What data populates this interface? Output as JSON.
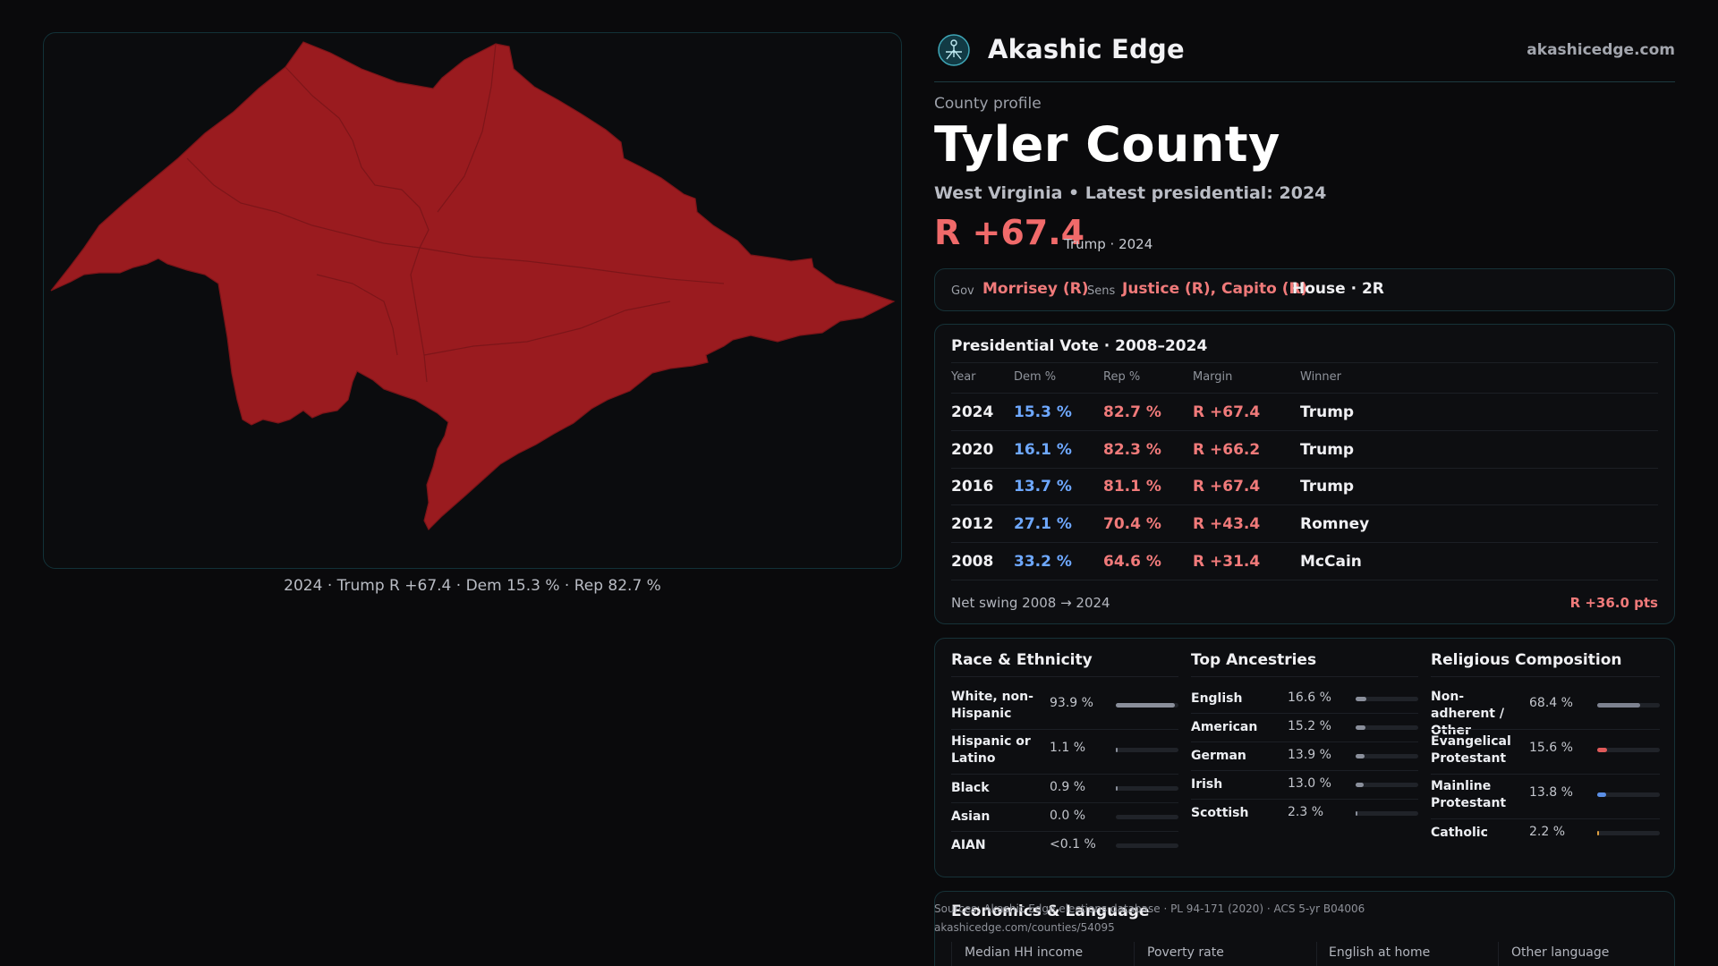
{
  "brand": {
    "name": "Akashic Edge",
    "url": "akashicedge.com",
    "logo_icon": "akashic-edge-logo-icon"
  },
  "profile": {
    "kicker": "County profile",
    "county": "Tyler County",
    "subtitle": "West Virginia • Latest presidential: 2024",
    "margin": "R +67.4",
    "margin_note": "Trump · 2024"
  },
  "officials": {
    "gov_label": "Gov",
    "gov": "Morrisey (R)",
    "sens_label": "Sens",
    "sens": "Justice (R), Capito (R)",
    "house": "House · 2R"
  },
  "map": {
    "fill_color": "#9a1b1f",
    "caption": "2024 · Trump R +67.4 · Dem 15.3 % · Rep 82.7 %"
  },
  "presidential": {
    "title": "Presidential Vote · 2008–2024",
    "headers": {
      "year": "Year",
      "dem": "Dem %",
      "rep": "Rep %",
      "margin": "Margin",
      "winner": "Winner"
    },
    "rows": [
      {
        "year": "2024",
        "dem": "15.3 %",
        "rep": "82.7 %",
        "margin": "R +67.4",
        "winner": "Trump"
      },
      {
        "year": "2020",
        "dem": "16.1 %",
        "rep": "82.3 %",
        "margin": "R +66.2",
        "winner": "Trump"
      },
      {
        "year": "2016",
        "dem": "13.7 %",
        "rep": "81.1 %",
        "margin": "R +67.4",
        "winner": "Trump"
      },
      {
        "year": "2012",
        "dem": "27.1 %",
        "rep": "70.4 %",
        "margin": "R +43.4",
        "winner": "Romney"
      },
      {
        "year": "2008",
        "dem": "33.2 %",
        "rep": "64.6 %",
        "margin": "R +31.4",
        "winner": "McCain"
      }
    ],
    "swing_label": "Net swing 2008 → 2024",
    "swing_value": "R +36.0 pts"
  },
  "race": {
    "title": "Race & Ethnicity",
    "rows": [
      {
        "label": "White, non-Hispanic",
        "value": "93.9 %",
        "share": 0.939
      },
      {
        "label": "Hispanic or Latino",
        "value": "1.1 %",
        "share": 0.011
      },
      {
        "label": "Black",
        "value": "0.9 %",
        "share": 0.009
      },
      {
        "label": "Asian",
        "value": "0.0 %",
        "share": 0.0
      },
      {
        "label": "AIAN",
        "value": "<0.1 %",
        "share": 0.0
      }
    ]
  },
  "ancestry": {
    "title": "Top Ancestries",
    "rows": [
      {
        "label": "English",
        "value": "16.6 %",
        "share": 0.166
      },
      {
        "label": "American",
        "value": "15.2 %",
        "share": 0.152
      },
      {
        "label": "German",
        "value": "13.9 %",
        "share": 0.139
      },
      {
        "label": "Irish",
        "value": "13.0 %",
        "share": 0.13
      },
      {
        "label": "Scottish",
        "value": "2.3 %",
        "share": 0.023
      }
    ]
  },
  "religion": {
    "title": "Religious Composition",
    "rows": [
      {
        "label": "Non-adherent / Other",
        "value": "68.4 %",
        "share": 0.684,
        "color": "#7d8290"
      },
      {
        "label": "Evangelical Protestant",
        "value": "15.6 %",
        "share": 0.156,
        "color": "#e05a5a"
      },
      {
        "label": "Mainline Protestant",
        "value": "13.8 %",
        "share": 0.138,
        "color": "#5b8fe6"
      },
      {
        "label": "Catholic",
        "value": "2.2 %",
        "share": 0.022,
        "color": "#e0a040"
      }
    ]
  },
  "economics": {
    "title": "Economics & Language",
    "headers": [
      "Median HH income",
      "Poverty rate",
      "English at home",
      "Other language"
    ]
  },
  "sources": {
    "line1": "Sources: Akashic Edge elections database · PL 94-171 (2020) · ACS 5-yr B04006",
    "line2": "akashicedge.com/counties/54095"
  }
}
